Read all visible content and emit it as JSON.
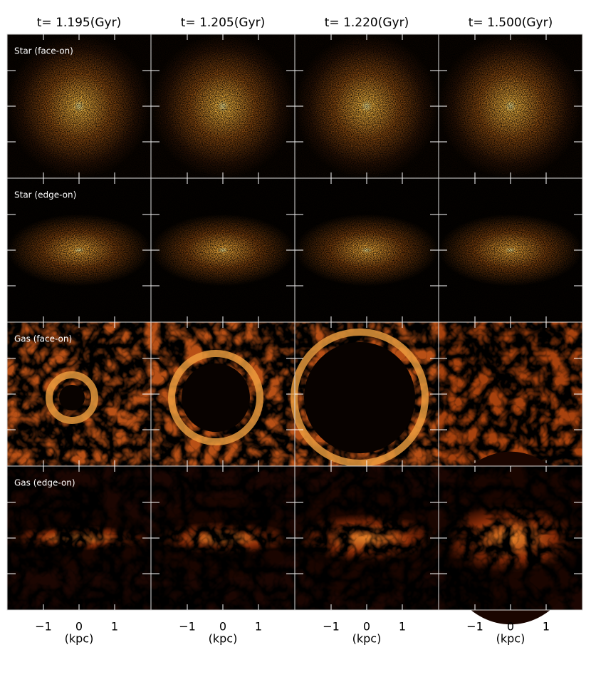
{
  "columns": [
    "t= 1.195(Gyr)",
    "t= 1.205(Gyr)",
    "t= 1.220(Gyr)",
    "t= 1.500(Gyr)"
  ],
  "rows": [
    "Star (face-on)",
    "Star (edge-on)",
    "Gas (face-on)",
    "Gas (edge-on)"
  ],
  "x_axis": {
    "ticks": [
      "−1",
      "0",
      "1"
    ],
    "label": "(kpc)"
  }
}
